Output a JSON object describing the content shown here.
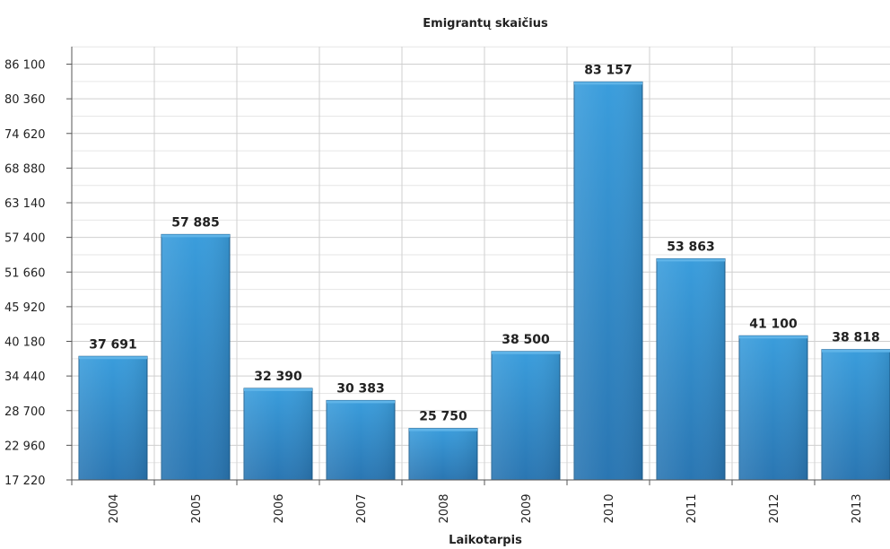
{
  "chart_data": {
    "type": "bar",
    "title": "Emigrantų skaičius",
    "xlabel": "Laikotarpis",
    "ylabel": "",
    "categories": [
      "2004",
      "2005",
      "2006",
      "2007",
      "2008",
      "2009",
      "2010",
      "2011",
      "2012",
      "2013"
    ],
    "values": [
      37691,
      57885,
      32390,
      30383,
      25750,
      38500,
      83157,
      53863,
      41100,
      38818
    ],
    "value_labels": [
      "37 691",
      "57 885",
      "32 390",
      "30 383",
      "25 750",
      "38 500",
      "83 157",
      "53 863",
      "41 100",
      "38 818"
    ],
    "ylim": [
      17220,
      89000
    ],
    "yticks": [
      17220,
      22960,
      28700,
      34440,
      40180,
      45920,
      51660,
      57400,
      63140,
      68880,
      74620,
      80360,
      86100
    ],
    "ytick_labels": [
      "17 220",
      "22 960",
      "28 700",
      "34 440",
      "40 180",
      "45 920",
      "51 660",
      "57 400",
      "63 140",
      "68 880",
      "74 620",
      "80 360",
      "86 100"
    ],
    "grid": true,
    "bar_color": "#2f8fd0"
  }
}
